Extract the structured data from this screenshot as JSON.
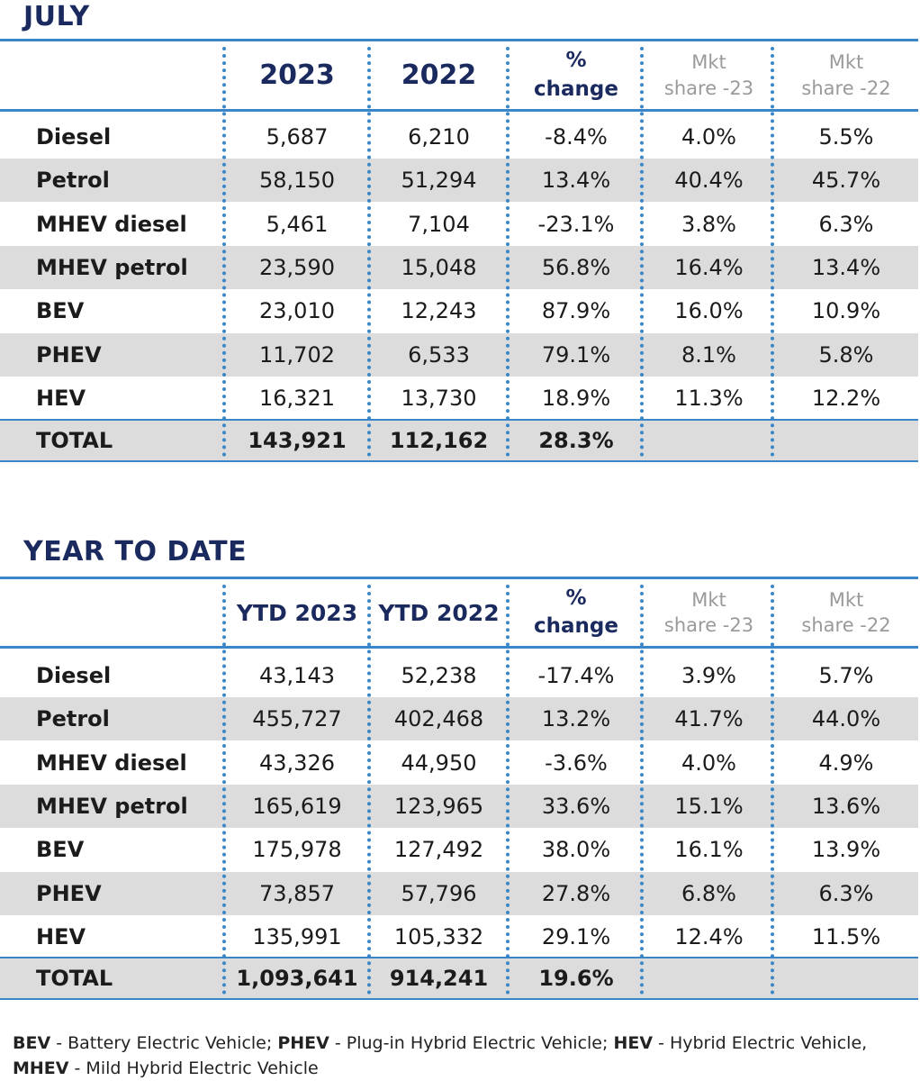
{
  "sections": [
    {
      "title": "JULY",
      "headers": {
        "c1": "2023",
        "c2": "2022",
        "pct_line1": "%",
        "pct_line2": "change",
        "mkt23_line1": "Mkt",
        "mkt23_line2": "share -23",
        "mkt22_line1": "Mkt",
        "mkt22_line2": "share -22"
      },
      "rows": [
        {
          "label": "Diesel",
          "v1": "5,687",
          "v2": "6,210",
          "pct": "-8.4%",
          "m23": "4.0%",
          "m22": "5.5%"
        },
        {
          "label": "Petrol",
          "v1": "58,150",
          "v2": "51,294",
          "pct": "13.4%",
          "m23": "40.4%",
          "m22": "45.7%"
        },
        {
          "label": "MHEV diesel",
          "v1": "5,461",
          "v2": "7,104",
          "pct": "-23.1%",
          "m23": "3.8%",
          "m22": "6.3%"
        },
        {
          "label": "MHEV petrol",
          "v1": "23,590",
          "v2": "15,048",
          "pct": "56.8%",
          "m23": "16.4%",
          "m22": "13.4%"
        },
        {
          "label": "BEV",
          "v1": "23,010",
          "v2": "12,243",
          "pct": "87.9%",
          "m23": "16.0%",
          "m22": "10.9%"
        },
        {
          "label": "PHEV",
          "v1": "11,702",
          "v2": "6,533",
          "pct": "79.1%",
          "m23": "8.1%",
          "m22": "5.8%"
        },
        {
          "label": "HEV",
          "v1": "16,321",
          "v2": "13,730",
          "pct": "18.9%",
          "m23": "11.3%",
          "m22": "12.2%"
        }
      ],
      "total": {
        "label": "TOTAL",
        "v1": "143,921",
        "v2": "112,162",
        "pct": "28.3%"
      }
    },
    {
      "title": "YEAR TO DATE",
      "headers": {
        "c1": "YTD 2023",
        "c2": "YTD 2022",
        "pct_line1": "%",
        "pct_line2": "change",
        "mkt23_line1": "Mkt",
        "mkt23_line2": "share -23",
        "mkt22_line1": "Mkt",
        "mkt22_line2": "share -22"
      },
      "rows": [
        {
          "label": "Diesel",
          "v1": "43,143",
          "v2": "52,238",
          "pct": "-17.4%",
          "m23": "3.9%",
          "m22": "5.7%"
        },
        {
          "label": "Petrol",
          "v1": "455,727",
          "v2": "402,468",
          "pct": "13.2%",
          "m23": "41.7%",
          "m22": "44.0%"
        },
        {
          "label": "MHEV diesel",
          "v1": "43,326",
          "v2": "44,950",
          "pct": "-3.6%",
          "m23": "4.0%",
          "m22": "4.9%"
        },
        {
          "label": "MHEV petrol",
          "v1": "165,619",
          "v2": "123,965",
          "pct": "33.6%",
          "m23": "15.1%",
          "m22": "13.6%"
        },
        {
          "label": "BEV",
          "v1": "175,978",
          "v2": "127,492",
          "pct": "38.0%",
          "m23": "16.1%",
          "m22": "13.9%"
        },
        {
          "label": "PHEV",
          "v1": "73,857",
          "v2": "57,796",
          "pct": "27.8%",
          "m23": "6.8%",
          "m22": "6.3%"
        },
        {
          "label": "HEV",
          "v1": "135,991",
          "v2": "105,332",
          "pct": "29.1%",
          "m23": "12.4%",
          "m22": "11.5%"
        }
      ],
      "total": {
        "label": "TOTAL",
        "v1": "1,093,641",
        "v2": "914,241",
        "pct": "19.6%"
      }
    }
  ],
  "footnote": {
    "t1": "BEV",
    "t2": " - Battery Electric Vehicle; ",
    "t3": "PHEV",
    "t4": " - Plug-in Hybrid Electric Vehicle; ",
    "t5": "HEV",
    "t6": " - Hybrid Electric Vehicle,",
    "t7": "MHEV",
    "t8": " - Mild Hybrid Electric Vehicle"
  },
  "colors": {
    "title": "#1a2a5e",
    "rule": "#3a86c8",
    "shade": "#dcdcdc",
    "muted_header": "#9a9a9a"
  }
}
